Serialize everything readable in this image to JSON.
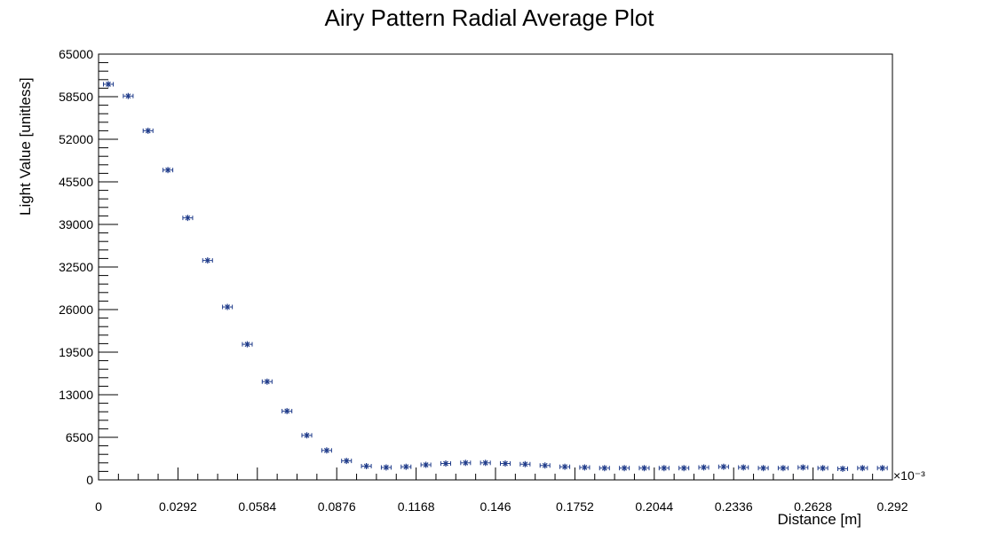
{
  "chart_data": {
    "type": "scatter",
    "title": "Airy Pattern Radial Average Plot",
    "xlabel": "Distance [m]",
    "ylabel": "Light Value [unitless]",
    "x_exponent": "×10⁻³",
    "xlim": [
      0,
      0.292
    ],
    "ylim": [
      0,
      65000
    ],
    "x_ticks": [
      "0",
      "0.0292",
      "0.0584",
      "0.0876",
      "0.1168",
      "0.146",
      "0.1752",
      "0.2044",
      "0.2336",
      "0.2628",
      "0.292"
    ],
    "y_ticks": [
      "0",
      "6500",
      "13000",
      "19500",
      "26000",
      "32500",
      "39000",
      "45500",
      "52000",
      "58500",
      "65000"
    ],
    "grid": false,
    "marker_color": "#1f3b8a",
    "series": [
      {
        "x_error": 0.0018,
        "x": [
          0.0036,
          0.0109,
          0.0182,
          0.0255,
          0.0328,
          0.0401,
          0.0474,
          0.0547,
          0.062,
          0.0693,
          0.0766,
          0.0839,
          0.0912,
          0.0985,
          0.1058,
          0.1131,
          0.1204,
          0.1277,
          0.135,
          0.1423,
          0.1496,
          0.1569,
          0.1642,
          0.1715,
          0.1788,
          0.1861,
          0.1934,
          0.2007,
          0.208,
          0.2153,
          0.2226,
          0.2299,
          0.2372,
          0.2445,
          0.2518,
          0.2591,
          0.2664,
          0.2737,
          0.281,
          0.2883
        ],
        "y": [
          60400,
          58600,
          53300,
          47300,
          40000,
          33500,
          26400,
          20700,
          15000,
          10500,
          6800,
          4500,
          2900,
          2100,
          1900,
          2000,
          2300,
          2500,
          2600,
          2600,
          2500,
          2400,
          2200,
          2000,
          1900,
          1800,
          1800,
          1800,
          1800,
          1800,
          1900,
          2000,
          1900,
          1800,
          1800,
          1900,
          1800,
          1700,
          1800,
          1800
        ]
      }
    ]
  }
}
